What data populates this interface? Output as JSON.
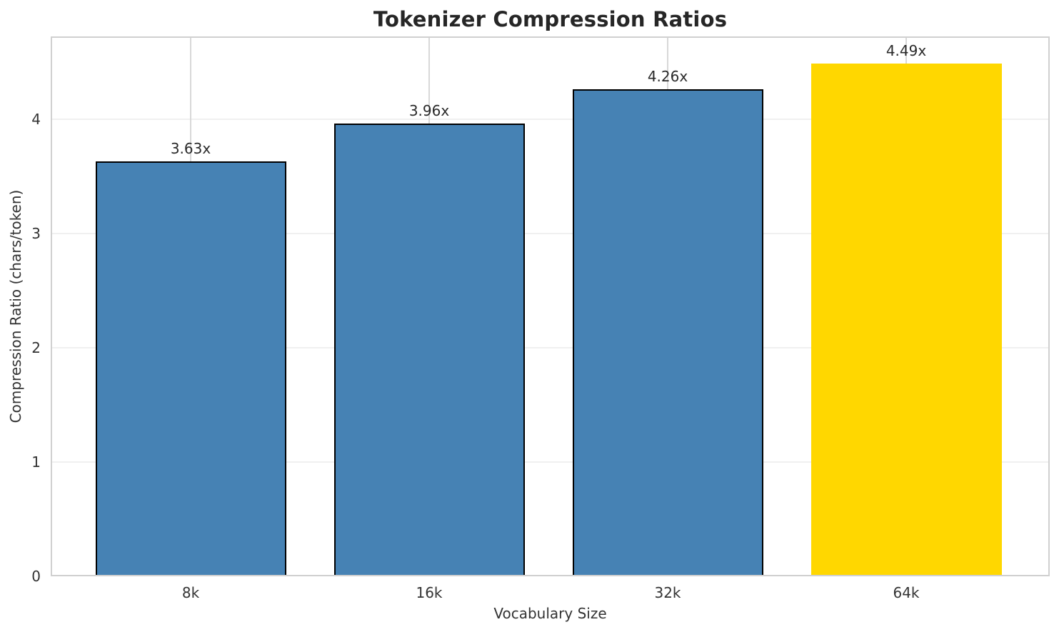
{
  "chart_data": {
    "type": "bar",
    "title": "Tokenizer Compression Ratios",
    "xlabel": "Vocabulary Size",
    "ylabel": "Compression Ratio (chars/token)",
    "categories": [
      "8k",
      "16k",
      "32k",
      "64k"
    ],
    "values": [
      3.63,
      3.96,
      4.26,
      4.49
    ],
    "bar_labels": [
      "3.63x",
      "3.96x",
      "4.26x",
      "4.49x"
    ],
    "yticks": [
      "0",
      "1",
      "2",
      "3",
      "4"
    ],
    "ylim": [
      0,
      4.725
    ],
    "grid": "on",
    "legend_position": "none",
    "highlight_index": 3,
    "colors": {
      "bar_default": "#4682b4",
      "bar_highlight": "#ffd700",
      "bar_edge": "#000000",
      "title_text": "#262626",
      "value_label_text": "#2a2a2a",
      "tick_text": "#333333",
      "axis_label_text": "#333333",
      "grid_horizontal": "#f0f0f0",
      "grid_vertical": "#d8d8d8",
      "spine": "#d0d0d0",
      "background": "#ffffff"
    }
  }
}
